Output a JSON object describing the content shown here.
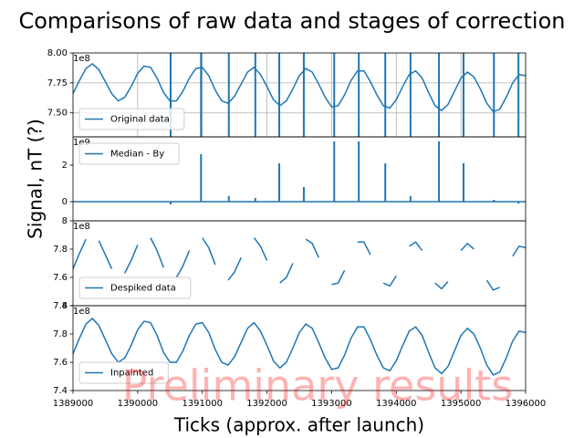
{
  "chart_data": {
    "type": "subplots",
    "title": "Comparisons of raw data and stages of correction",
    "xlabel": "Ticks (approx. after launch)",
    "ylabel": "Signal, nT (?)",
    "watermark": "Preliminary results",
    "color": "#1f77b4",
    "xlim": [
      1389000,
      1396000
    ],
    "xticks": [
      1389000,
      1390000,
      1391000,
      1392000,
      1393000,
      1394000,
      1395000,
      1396000
    ],
    "x": [
      1389000,
      1389100,
      1389200,
      1389300,
      1389400,
      1389500,
      1389600,
      1389700,
      1389800,
      1389900,
      1390000,
      1390100,
      1390200,
      1390300,
      1390400,
      1390500,
      1390600,
      1390700,
      1390800,
      1390900,
      1391000,
      1391100,
      1391200,
      1391300,
      1391400,
      1391500,
      1391600,
      1391700,
      1391800,
      1391900,
      1392000,
      1392100,
      1392200,
      1392300,
      1392400,
      1392500,
      1392600,
      1392700,
      1392800,
      1392900,
      1393000,
      1393100,
      1393200,
      1393300,
      1393400,
      1393500,
      1393600,
      1393700,
      1393800,
      1393900,
      1394000,
      1394100,
      1394200,
      1394300,
      1394400,
      1394500,
      1394600,
      1394700,
      1394800,
      1394900,
      1395000,
      1395100,
      1395200,
      1395300,
      1395400,
      1395500,
      1395600,
      1395700,
      1395800,
      1395900,
      1396000
    ],
    "panels": [
      {
        "type": "line",
        "name": "Original data",
        "offset": "1e8",
        "legend": "lower left",
        "grid": true,
        "ylim": [
          7.3,
          8.0
        ],
        "yticks": [
          {
            "value": 7.5,
            "label": "7.50"
          },
          {
            "value": 7.75,
            "label": "7.75"
          },
          {
            "value": 8.0,
            "label": "8.00"
          }
        ],
        "spike_x": [
          1390510,
          1390980,
          1391410,
          1391820,
          1392190,
          1392570,
          1393040,
          1393420,
          1393830,
          1394220,
          1394660,
          1395040,
          1395510,
          1395890
        ],
        "values": [
          7.66,
          7.77,
          7.87,
          7.91,
          7.86,
          7.76,
          7.66,
          7.6,
          7.63,
          7.72,
          7.83,
          7.89,
          7.88,
          7.79,
          7.67,
          7.6,
          7.6,
          7.68,
          7.79,
          7.87,
          7.88,
          7.81,
          7.69,
          7.6,
          7.58,
          7.64,
          7.74,
          7.84,
          7.88,
          7.82,
          7.72,
          7.61,
          7.56,
          7.6,
          7.7,
          7.81,
          7.87,
          7.84,
          7.74,
          7.63,
          7.55,
          7.56,
          7.65,
          7.77,
          7.85,
          7.85,
          7.76,
          7.65,
          7.56,
          7.54,
          7.61,
          7.72,
          7.82,
          7.85,
          7.79,
          7.67,
          7.56,
          7.52,
          7.57,
          7.68,
          7.79,
          7.84,
          7.8,
          7.7,
          7.58,
          7.51,
          7.53,
          7.63,
          7.75,
          7.82,
          7.81
        ]
      },
      {
        "type": "spikes",
        "name": "Median - By",
        "offset": "1e9",
        "legend": "upper left",
        "grid": false,
        "ylim": [
          -1.05,
          3.55
        ],
        "yticks": [
          0,
          2
        ],
        "spike_x": [
          1390510,
          1390980,
          1391410,
          1391820,
          1392190,
          1392570,
          1393040,
          1393420,
          1393830,
          1394220,
          1394660,
          1395040,
          1395510,
          1395890
        ],
        "values": [
          -0.15,
          2.6,
          0.3,
          0.2,
          2.1,
          0.8,
          3.3,
          3.3,
          2.1,
          0.3,
          3.3,
          2.1,
          0.1,
          -0.1
        ]
      },
      {
        "type": "line",
        "name": "Despiked data",
        "offset": "1e8",
        "legend": "lower left",
        "grid": false,
        "ylim": [
          7.4,
          8.0
        ],
        "yticks": [
          7.4,
          7.6,
          7.8,
          8.0
        ],
        "values": [
          7.66,
          7.77,
          7.87,
          null,
          7.86,
          7.76,
          7.66,
          null,
          7.63,
          7.72,
          7.83,
          null,
          7.88,
          7.79,
          7.67,
          null,
          7.6,
          7.68,
          7.79,
          null,
          7.88,
          7.81,
          7.69,
          null,
          7.58,
          7.64,
          7.74,
          null,
          7.88,
          7.82,
          7.72,
          null,
          7.56,
          7.6,
          7.7,
          null,
          7.87,
          7.84,
          7.74,
          null,
          7.55,
          7.56,
          7.65,
          null,
          7.85,
          7.85,
          7.76,
          null,
          7.56,
          7.54,
          7.61,
          null,
          7.82,
          7.85,
          7.79,
          null,
          7.56,
          7.52,
          7.57,
          null,
          7.79,
          7.84,
          7.8,
          null,
          7.58,
          7.51,
          7.53,
          null,
          7.75,
          7.82,
          7.81
        ]
      },
      {
        "type": "line",
        "name": "Inpainted",
        "offset": "1e8",
        "legend": "lower left",
        "grid": false,
        "ylim": [
          7.4,
          8.0
        ],
        "yticks": [
          7.4,
          7.6,
          7.8,
          8.0
        ],
        "values": [
          7.66,
          7.77,
          7.87,
          7.91,
          7.86,
          7.76,
          7.66,
          7.6,
          7.63,
          7.72,
          7.83,
          7.89,
          7.88,
          7.79,
          7.67,
          7.6,
          7.6,
          7.68,
          7.79,
          7.87,
          7.88,
          7.81,
          7.69,
          7.6,
          7.58,
          7.64,
          7.74,
          7.84,
          7.88,
          7.82,
          7.72,
          7.61,
          7.56,
          7.6,
          7.7,
          7.81,
          7.87,
          7.84,
          7.74,
          7.63,
          7.55,
          7.56,
          7.65,
          7.77,
          7.85,
          7.85,
          7.76,
          7.65,
          7.56,
          7.54,
          7.61,
          7.72,
          7.82,
          7.85,
          7.79,
          7.67,
          7.56,
          7.52,
          7.57,
          7.68,
          7.79,
          7.84,
          7.8,
          7.7,
          7.58,
          7.51,
          7.53,
          7.63,
          7.75,
          7.82,
          7.81
        ]
      }
    ]
  }
}
